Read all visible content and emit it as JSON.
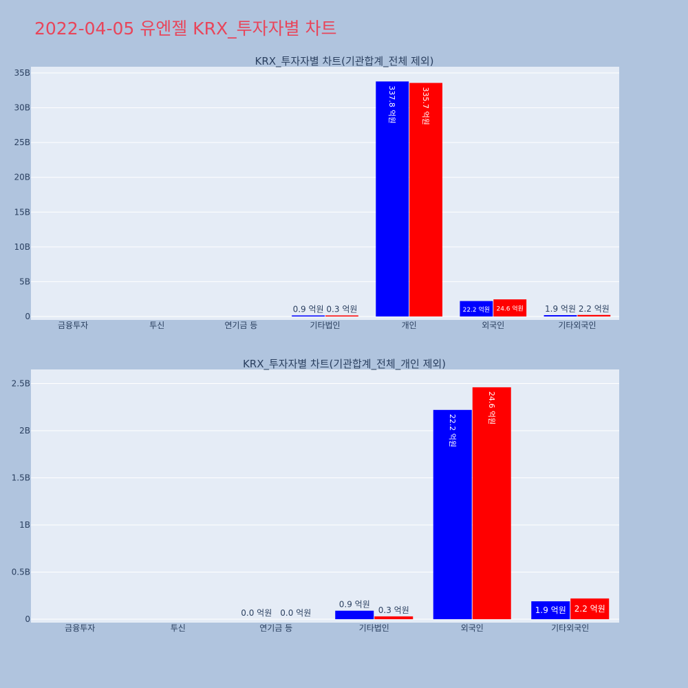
{
  "page": {
    "title": "2022-04-05 유엔젤 KRX_투자자별 차트"
  },
  "chart_data": [
    {
      "type": "bar",
      "title": "KRX_투자자별 차트(기관합계_전체 제외)",
      "categories": [
        "금융투자",
        "투신",
        "연기금 등",
        "기타법인",
        "개인",
        "외국인",
        "기타외국인"
      ],
      "ylim": [
        0,
        35500000000
      ],
      "yticks": [
        0,
        5000000000,
        10000000000,
        15000000000,
        20000000000,
        25000000000,
        30000000000,
        35000000000
      ],
      "ytick_labels": [
        "0",
        "5B",
        "10B",
        "15B",
        "20B",
        "25B",
        "30B",
        "35B"
      ],
      "grid": true,
      "series": [
        {
          "color": "#0000ff",
          "values": [
            0,
            0,
            0,
            90000000,
            33780000000,
            2220000000,
            190000000
          ],
          "labels": [
            "",
            "",
            "",
            "0.9 억원",
            "337.8 억원",
            "22.2 억원",
            "1.9 억원"
          ]
        },
        {
          "color": "#ff0000",
          "values": [
            0,
            0,
            0,
            30000000,
            33570000000,
            2460000000,
            220000000
          ],
          "labels": [
            "",
            "",
            "",
            "0.3 억원",
            "335.7 억원",
            "24.6 억원",
            "2.2 억원"
          ]
        }
      ]
    },
    {
      "type": "bar",
      "title": "KRX_투자자별 차트(기관합계_전체_개인 제외)",
      "categories": [
        "금융투자",
        "투신",
        "연기금 등",
        "기타법인",
        "외국인",
        "기타외국인"
      ],
      "ylim": [
        0,
        2620000000
      ],
      "yticks": [
        0,
        500000000,
        1000000000,
        1500000000,
        2000000000,
        2500000000
      ],
      "ytick_labels": [
        "0",
        "0.5B",
        "1B",
        "1.5B",
        "2B",
        "2.5B"
      ],
      "grid": true,
      "series": [
        {
          "color": "#0000ff",
          "values": [
            0,
            0,
            0,
            90000000,
            2220000000,
            190000000
          ],
          "labels": [
            "",
            "",
            "0.0 억원",
            "0.9 억원",
            "22.2 억원",
            "1.9 억원"
          ]
        },
        {
          "color": "#ff0000",
          "values": [
            0,
            0,
            0,
            30000000,
            2460000000,
            220000000
          ],
          "labels": [
            "",
            "",
            "0.0 억원",
            "0.3 억원",
            "24.6 억원",
            "2.2 억원"
          ]
        }
      ]
    }
  ]
}
